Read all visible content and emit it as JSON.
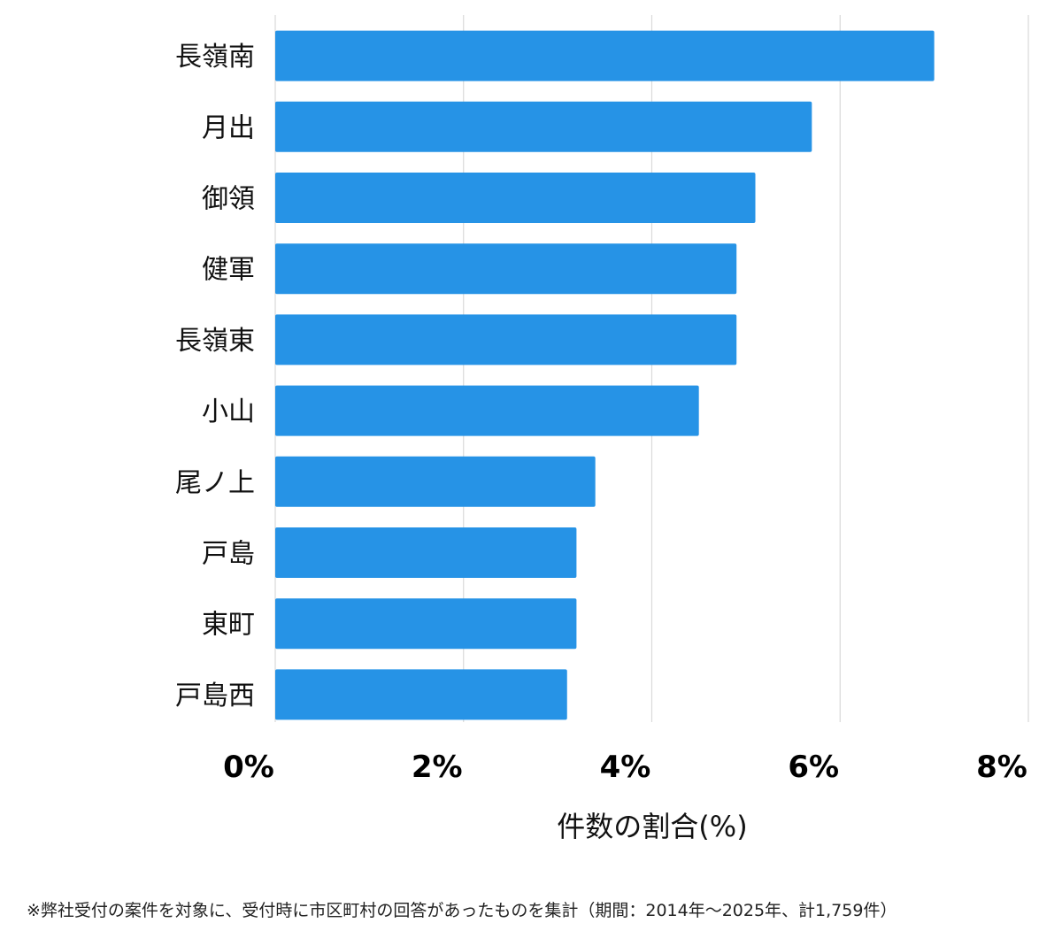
{
  "chart_data": {
    "type": "bar",
    "orientation": "horizontal",
    "categories": [
      "長嶺南",
      "月出",
      "御領",
      "健軍",
      "長嶺東",
      "小山",
      "尾ノ上",
      "戸島",
      "東町",
      "戸島西"
    ],
    "values": [
      7.0,
      5.7,
      5.1,
      4.9,
      4.9,
      4.5,
      3.4,
      3.2,
      3.2,
      3.1
    ],
    "xlim": [
      0,
      8
    ],
    "xticks": [
      "0%",
      "2%",
      "4%",
      "6%",
      "8%"
    ],
    "xlabel": "件数の割合(%)",
    "ylabel": "",
    "title": "",
    "grid": true,
    "bar_color": "#2693e6",
    "grid_color": "#d9d9d9"
  },
  "footnote": "※弊社受付の案件を対象に、受付時に市区町村の回答があったものを集計（期間：2014年～2025年、計1,759件）"
}
